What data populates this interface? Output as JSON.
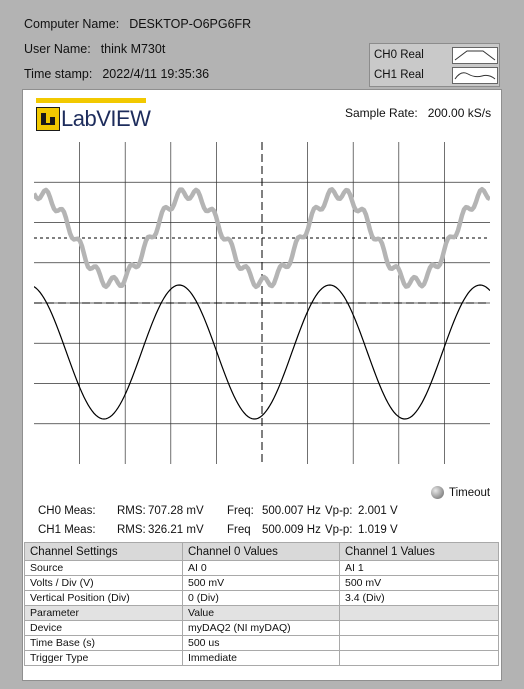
{
  "info": {
    "computer_name_label": "Computer Name:",
    "computer_name": "DESKTOP-O6PG6FR",
    "user_name_label": "User Name:",
    "user_name": "think M730t",
    "timestamp_label": "Time stamp:",
    "timestamp": "2022/4/11 19:35:36"
  },
  "legend": {
    "ch0": "CH0 Real",
    "ch1": "CH1 Real",
    "ch0_color": "#b4b4b4",
    "ch1_color": "#000000"
  },
  "logo": {
    "text": "LabVIEW",
    "brand_color": "#f2c900"
  },
  "sample_rate": {
    "label": "Sample Rate:",
    "value": "200.00 kS/s"
  },
  "timeout": {
    "label": "Timeout"
  },
  "measurements": [
    {
      "label": "CH0 Meas:",
      "rms_label": "RMS:",
      "rms": "707.28 mV",
      "freq_label": "Freq:",
      "freq": "500.007 Hz",
      "vpp_label": "Vp-p:",
      "vpp": "2.001 V"
    },
    {
      "label": "CH1 Meas:",
      "rms_label": "RMS:",
      "rms": "326.21 mV",
      "freq_label": "Freq",
      "freq": "500.009 Hz",
      "vpp_label": "Vp-p:",
      "vpp": "1.019 V"
    }
  ],
  "settings": {
    "headers": [
      "Channel Settings",
      "Channel 0 Values",
      "Channel 1 Values"
    ],
    "rows": [
      [
        "Source",
        "AI 0",
        "AI 1"
      ],
      [
        "Volts / Div (V)",
        "500 mV",
        "500 mV"
      ],
      [
        "Vertical Position (Div)",
        "0 (Div)",
        "3.4 (Div)"
      ]
    ],
    "param_header": [
      "Parameter",
      "Value",
      ""
    ],
    "params": [
      [
        "Device",
        "myDAQ2 (NI myDAQ)",
        ""
      ],
      [
        "Time Base (s)",
        "500 us",
        ""
      ],
      [
        "Trigger Type",
        "Immediate",
        ""
      ]
    ]
  },
  "chart_data": {
    "type": "line",
    "grid": true,
    "x_divisions": 10,
    "y_divisions": 8,
    "series": [
      {
        "name": "CH0 Real",
        "color": "#b4b4b4",
        "description_values": {
          "frequency_hz": 500.007,
          "vpp_v": 2.001,
          "volts_per_div": 0.5,
          "vertical_position_div": 0
        }
      },
      {
        "name": "CH1 Real",
        "color": "#000000",
        "description_values": {
          "frequency_hz": 500.009,
          "vpp_v": 1.019,
          "volts_per_div": 0.5,
          "vertical_position_div": 3.4
        }
      }
    ]
  }
}
